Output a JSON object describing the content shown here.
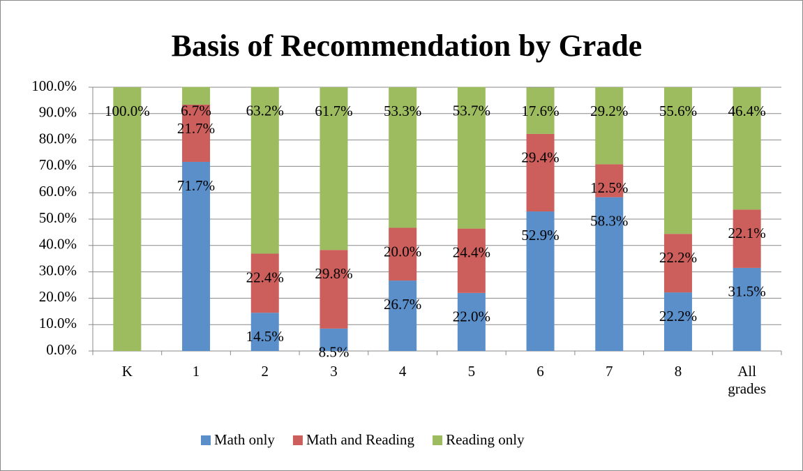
{
  "chart_data": {
    "type": "stacked_bar",
    "title": "Basis of Recommendation by Grade",
    "categories": [
      "K",
      "1",
      "2",
      "3",
      "4",
      "5",
      "6",
      "7",
      "8",
      "All grades"
    ],
    "series": [
      {
        "name": "Math only",
        "color": "#5b8fc9",
        "values": [
          null,
          71.7,
          14.5,
          8.5,
          26.7,
          22.0,
          52.9,
          58.3,
          22.2,
          31.5
        ],
        "value_labels": [
          null,
          "71.7%",
          "14.5%",
          "8.5%",
          "26.7%",
          "22.0%",
          "52.9%",
          "58.3%",
          "22.2%",
          "31.5%"
        ]
      },
      {
        "name": "Math and Reading",
        "color": "#cc5f5c",
        "values": [
          null,
          21.7,
          22.4,
          29.8,
          20.0,
          24.4,
          29.4,
          12.5,
          22.2,
          22.1
        ],
        "value_labels": [
          null,
          "21.7%",
          "22.4%",
          "29.8%",
          "20.0%",
          "24.4%",
          "29.4%",
          "12.5%",
          "22.2%",
          "22.1%"
        ]
      },
      {
        "name": "Reading only",
        "color": "#9dbb5f",
        "values": [
          100.0,
          6.7,
          63.2,
          61.7,
          53.3,
          53.7,
          17.6,
          29.2,
          55.6,
          46.4
        ],
        "value_labels": [
          "100.0%",
          "6.7%",
          "63.2%",
          "61.7%",
          "53.3%",
          "53.7%",
          "17.6%",
          "29.2%",
          "55.6%",
          "46.4%"
        ]
      }
    ],
    "ylim": [
      0,
      100
    ],
    "yticks": [
      {
        "value": 0,
        "label": "0.0%"
      },
      {
        "value": 10,
        "label": "10.0%"
      },
      {
        "value": 20,
        "label": "20.0%"
      },
      {
        "value": 30,
        "label": "30.0%"
      },
      {
        "value": 40,
        "label": "40.0%"
      },
      {
        "value": 50,
        "label": "50.0%"
      },
      {
        "value": 60,
        "label": "60.0%"
      },
      {
        "value": 70,
        "label": "70.0%"
      },
      {
        "value": 80,
        "label": "80.0%"
      },
      {
        "value": 90,
        "label": "90.0%"
      },
      {
        "value": 100,
        "label": "100.0%"
      }
    ],
    "grid": true,
    "legend": "bottom"
  }
}
